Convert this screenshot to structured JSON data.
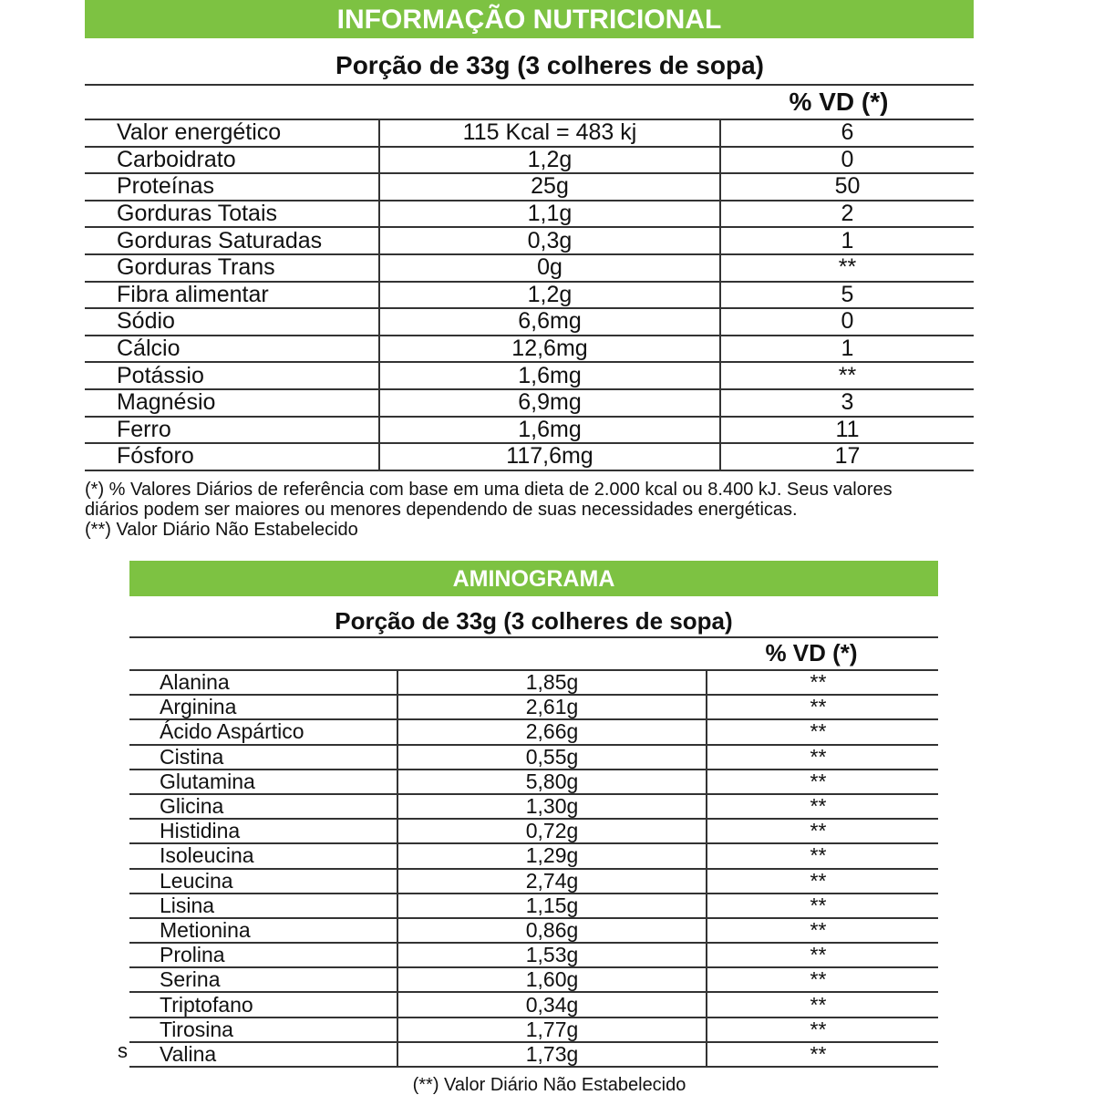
{
  "nutrition": {
    "header": "INFORMAÇÃO NUTRICIONAL",
    "serving": "Porção de 33g (3 colheres de sopa)",
    "vd_header": "% VD (*)",
    "rows": [
      {
        "name": "Valor energético",
        "amount": "115 Kcal = 483 kj",
        "vd": "6"
      },
      {
        "name": "Carboidrato",
        "amount": "1,2g",
        "vd": "0"
      },
      {
        "name": "Proteínas",
        "amount": "25g",
        "vd": "50"
      },
      {
        "name": "Gorduras Totais",
        "amount": "1,1g",
        "vd": "2"
      },
      {
        "name": "Gorduras Saturadas",
        "amount": "0,3g",
        "vd": "1"
      },
      {
        "name": "Gorduras Trans",
        "amount": "0g",
        "vd": "**"
      },
      {
        "name": "Fibra alimentar",
        "amount": "1,2g",
        "vd": "5"
      },
      {
        "name": "Sódio",
        "amount": "6,6mg",
        "vd": "0"
      },
      {
        "name": "Cálcio",
        "amount": "12,6mg",
        "vd": "1"
      },
      {
        "name": "Potássio",
        "amount": "1,6mg",
        "vd": "**"
      },
      {
        "name": "Magnésio",
        "amount": "6,9mg",
        "vd": "3"
      },
      {
        "name": "Ferro",
        "amount": "1,6mg",
        "vd": "11"
      },
      {
        "name": "Fósforo",
        "amount": "117,6mg",
        "vd": "17"
      }
    ],
    "footnote_1": "(*) % Valores Diários de referência com base em uma dieta de 2.000 kcal ou 8.400 kJ. Seus valores",
    "footnote_2": "diários podem ser maiores ou menores dependendo de suas necessidades energéticas.",
    "footnote_3": "(**) Valor Diário Não Estabelecido"
  },
  "aminogram": {
    "header": "AMINOGRAMA",
    "serving": "Porção de 33g (3 colheres de sopa)",
    "vd_header": "% VD (*)",
    "stray_text": "s",
    "rows": [
      {
        "name": "Alanina",
        "amount": "1,85g",
        "vd": "**"
      },
      {
        "name": "Arginina",
        "amount": "2,61g",
        "vd": "**"
      },
      {
        "name": "Ácido Aspártico",
        "amount": "2,66g",
        "vd": "**"
      },
      {
        "name": "Cistina",
        "amount": "0,55g",
        "vd": "**"
      },
      {
        "name": "Glutamina",
        "amount": "5,80g",
        "vd": "**"
      },
      {
        "name": "Glicina",
        "amount": "1,30g",
        "vd": "**"
      },
      {
        "name": "Histidina",
        "amount": "0,72g",
        "vd": "**"
      },
      {
        "name": "Isoleucina",
        "amount": "1,29g",
        "vd": "**"
      },
      {
        "name": "Leucina",
        "amount": "2,74g",
        "vd": "**"
      },
      {
        "name": "Lisina",
        "amount": "1,15g",
        "vd": "**"
      },
      {
        "name": "Metionina",
        "amount": "0,86g",
        "vd": "**"
      },
      {
        "name": "Prolina",
        "amount": "1,53g",
        "vd": "**"
      },
      {
        "name": "Serina",
        "amount": "1,60g",
        "vd": "**"
      },
      {
        "name": "Triptofano",
        "amount": "0,34g",
        "vd": "**"
      },
      {
        "name": "Tirosina",
        "amount": "1,77g",
        "vd": "**"
      },
      {
        "name": "Valina",
        "amount": "1,73g",
        "vd": "**"
      }
    ],
    "footnote": "(**) Valor Diário Não Estabelecido"
  },
  "colors": {
    "header_green": "#7dc242",
    "text": "#111111"
  }
}
